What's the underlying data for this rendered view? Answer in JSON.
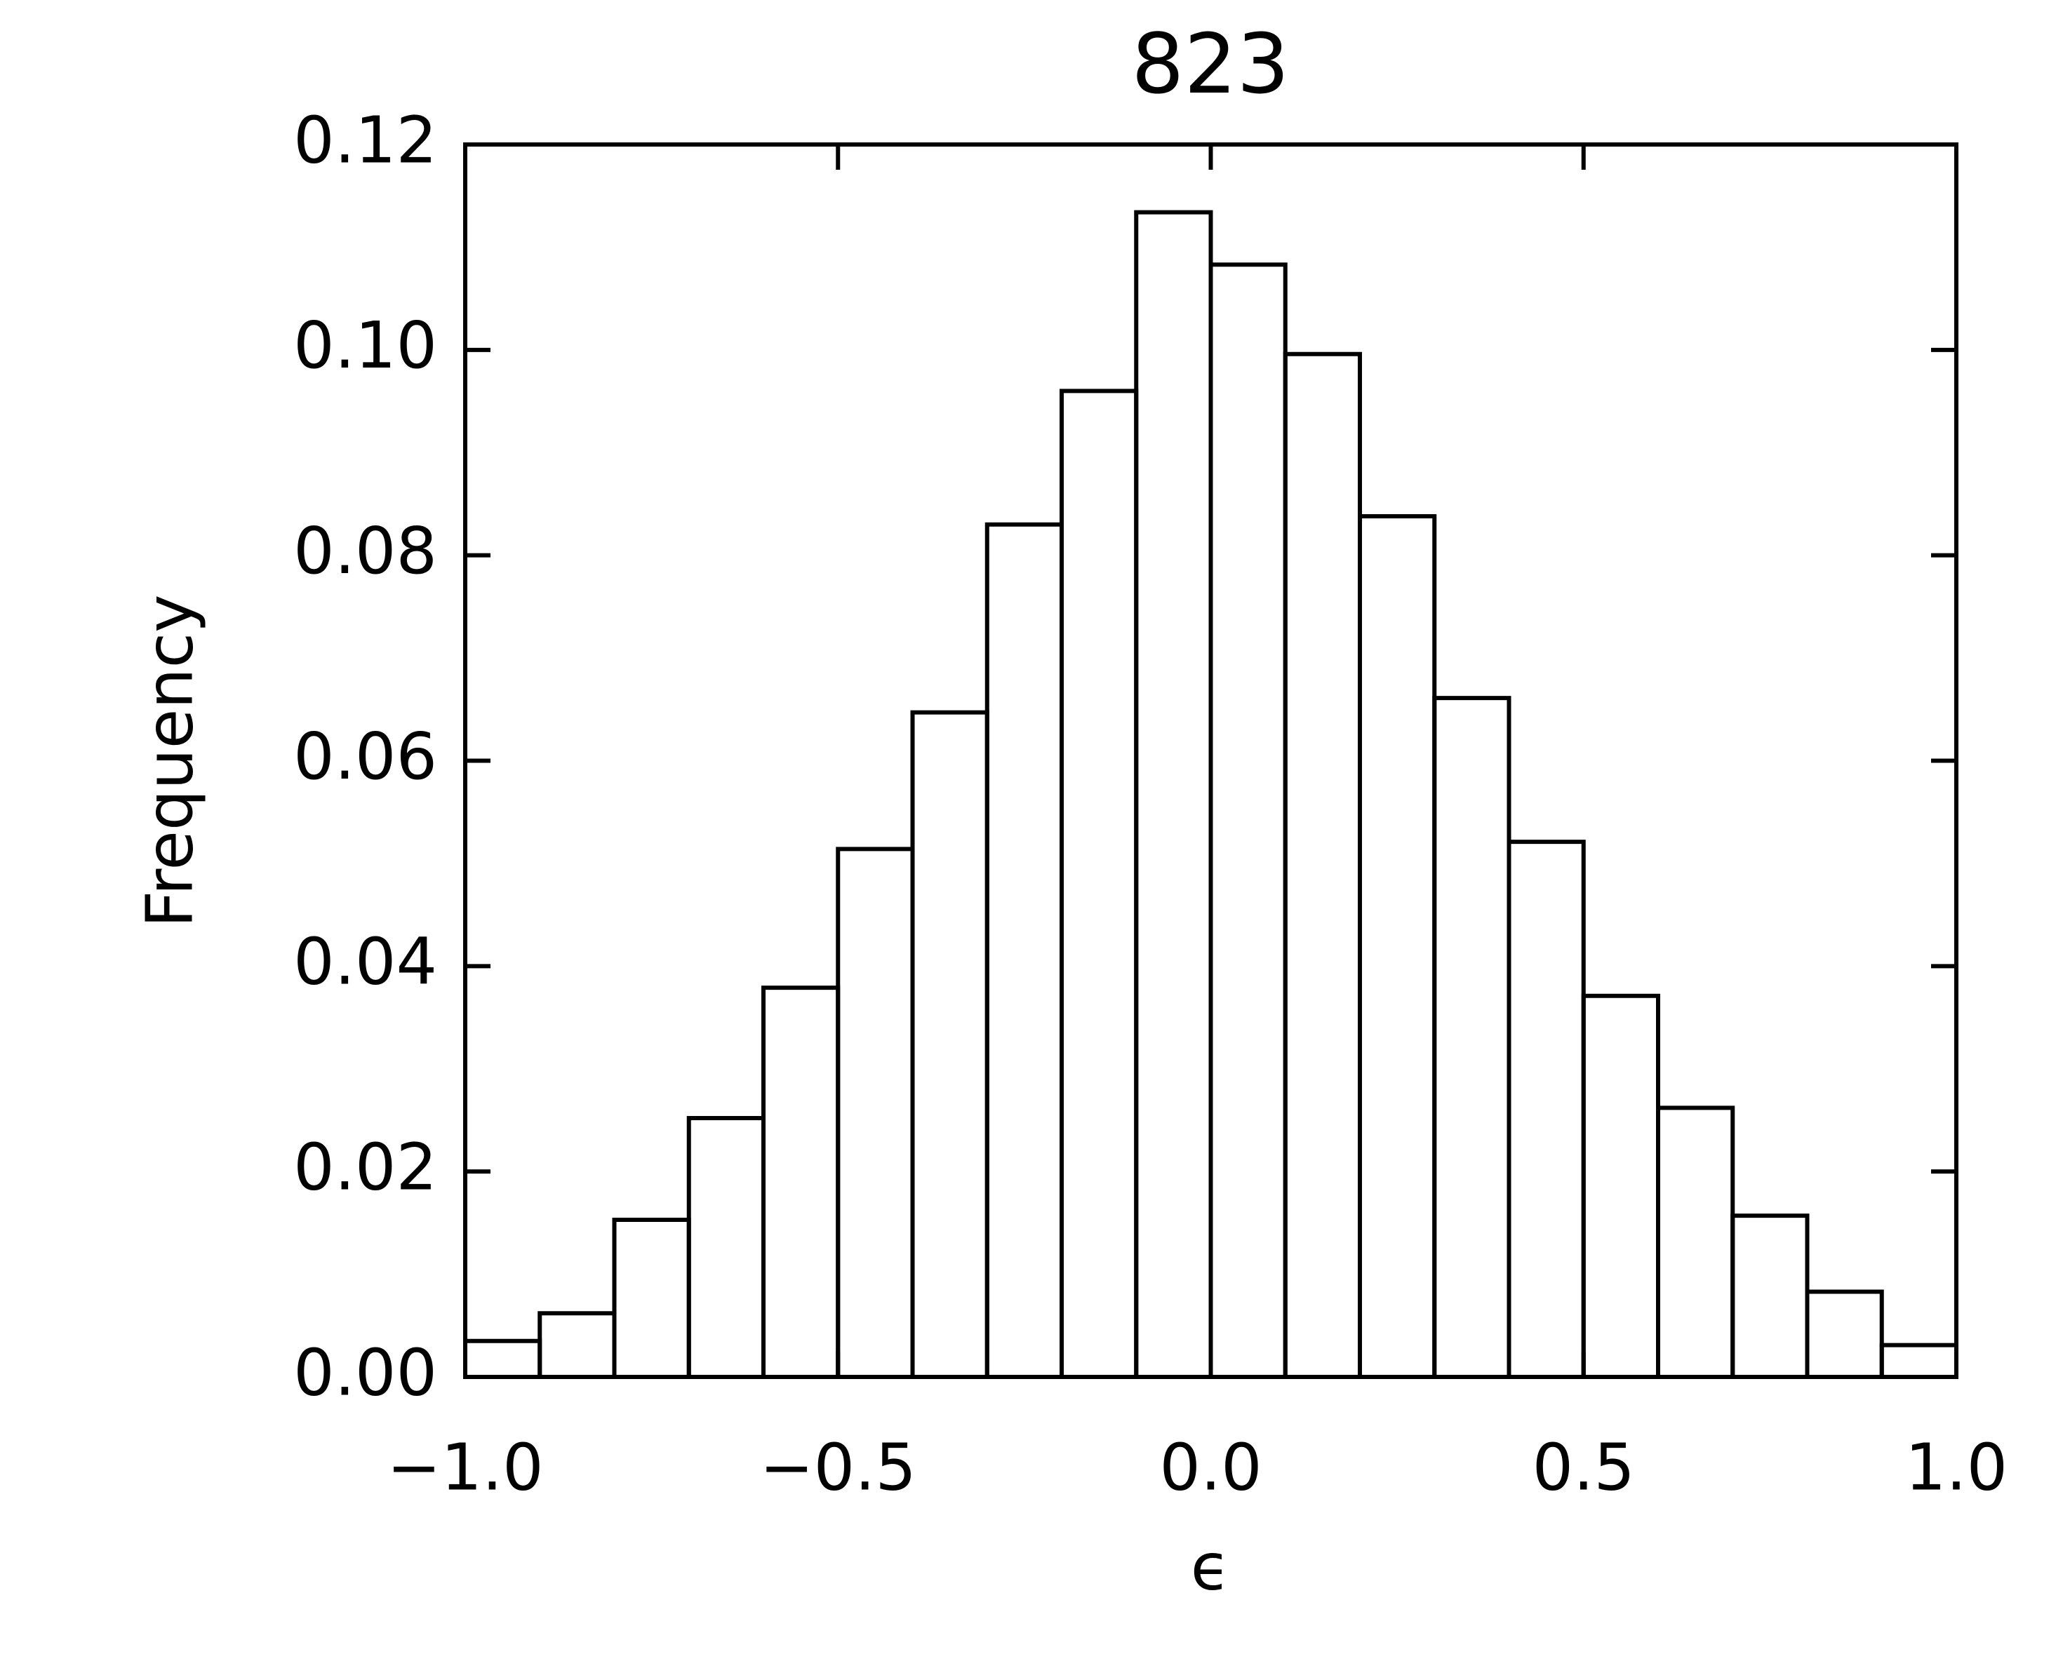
{
  "chart_data": {
    "type": "histogram",
    "title": "823",
    "x_label": "ϵ",
    "y_label": "Frequency",
    "bins": [
      -1.0,
      -0.9,
      -0.8,
      -0.7,
      -0.6,
      -0.5,
      -0.4,
      -0.3,
      -0.2,
      -0.1,
      0.0,
      0.1,
      0.2,
      0.3,
      0.4,
      0.5,
      0.6,
      0.7,
      0.8,
      0.9,
      1.0
    ],
    "values": [
      0.0035,
      0.0062,
      0.0153,
      0.0252,
      0.0379,
      0.0514,
      0.0647,
      0.083,
      0.096,
      0.1134,
      0.1083,
      0.0996,
      0.0838,
      0.0661,
      0.0521,
      0.0371,
      0.0262,
      0.0157,
      0.0083,
      0.0031
    ],
    "color": "#000000",
    "xlim": [
      -1.0,
      1.0
    ],
    "xticks": [
      {
        "value": -1.0,
        "label": "−1.0"
      },
      {
        "value": -0.5,
        "label": "−0.5"
      },
      {
        "value": 0.0,
        "label": "0.0"
      },
      {
        "value": 0.5,
        "label": "0.5"
      },
      {
        "value": 1.0,
        "label": "1.0"
      }
    ],
    "ylim": [
      0,
      0.12
    ],
    "yticks": [
      {
        "value": 0,
        "label": "0.00"
      },
      {
        "value": 0.02,
        "label": "0.02"
      },
      {
        "value": 0.04,
        "label": "0.04"
      },
      {
        "value": 0.06,
        "label": "0.06"
      },
      {
        "value": 0.08,
        "label": "0.08"
      },
      {
        "value": 0.1,
        "label": "0.10"
      },
      {
        "value": 0.12,
        "label": "0.12"
      }
    ],
    "grid": false
  }
}
